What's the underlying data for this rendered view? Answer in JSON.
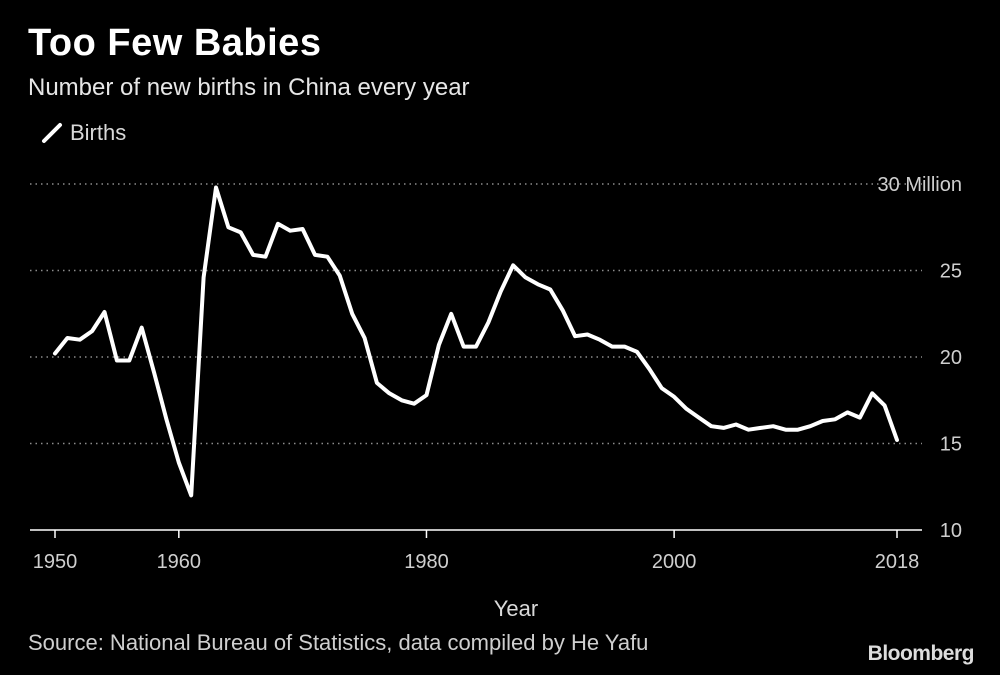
{
  "header": {
    "title": "Too Few Babies",
    "subtitle": "Number of new births in China every year"
  },
  "legend": {
    "label": "Births"
  },
  "footer": {
    "source": "Source: National Bureau of Statistics, data compiled by He Yafu",
    "brand": "Bloomberg"
  },
  "colors": {
    "background": "#000000",
    "line": "#ffffff",
    "grid": "#8c8c8c"
  },
  "chart_data": {
    "type": "line",
    "title": "Too Few Babies",
    "subtitle": "Number of new births in China every year",
    "xlabel": "Year",
    "ylabel": "",
    "xlim": [
      1949,
      2022
    ],
    "ylim": [
      10,
      30
    ],
    "x_ticks": [
      1950,
      1960,
      1980,
      2000,
      2018
    ],
    "x_tick_labels": [
      "1950",
      "1960",
      "1980",
      "2000",
      "2018"
    ],
    "y_ticks": [
      10,
      15,
      20,
      25,
      30
    ],
    "y_tick_labels": [
      "10",
      "15",
      "20",
      "25",
      "30 Million"
    ],
    "grid": "horizontal dotted",
    "legend_position": "top-left",
    "series": [
      {
        "name": "Births",
        "x": [
          1950,
          1951,
          1952,
          1953,
          1954,
          1955,
          1956,
          1957,
          1958,
          1959,
          1960,
          1961,
          1962,
          1963,
          1964,
          1965,
          1966,
          1967,
          1968,
          1969,
          1970,
          1971,
          1972,
          1973,
          1974,
          1975,
          1976,
          1977,
          1978,
          1979,
          1980,
          1981,
          1982,
          1983,
          1984,
          1985,
          1986,
          1987,
          1988,
          1989,
          1990,
          1991,
          1992,
          1993,
          1994,
          1995,
          1996,
          1997,
          1998,
          1999,
          2000,
          2001,
          2002,
          2003,
          2004,
          2005,
          2006,
          2007,
          2008,
          2009,
          2010,
          2011,
          2012,
          2013,
          2014,
          2015,
          2016,
          2017,
          2018
        ],
        "values": [
          20.2,
          21.1,
          21.0,
          21.5,
          22.6,
          19.8,
          19.8,
          21.7,
          19.1,
          16.4,
          13.9,
          12.0,
          24.6,
          29.8,
          27.5,
          27.2,
          25.9,
          25.8,
          27.7,
          27.3,
          27.4,
          25.9,
          25.8,
          24.7,
          22.5,
          21.1,
          18.5,
          17.9,
          17.5,
          17.3,
          17.8,
          20.7,
          22.5,
          20.6,
          20.6,
          22.0,
          23.8,
          25.3,
          24.6,
          24.2,
          23.9,
          22.7,
          21.2,
          21.3,
          21.0,
          20.6,
          20.6,
          20.3,
          19.3,
          18.2,
          17.7,
          17.0,
          16.5,
          16.0,
          15.9,
          16.1,
          15.8,
          15.9,
          16.0,
          15.8,
          15.8,
          16.0,
          16.3,
          16.4,
          16.8,
          16.5,
          17.9,
          17.2,
          15.2
        ]
      }
    ]
  }
}
